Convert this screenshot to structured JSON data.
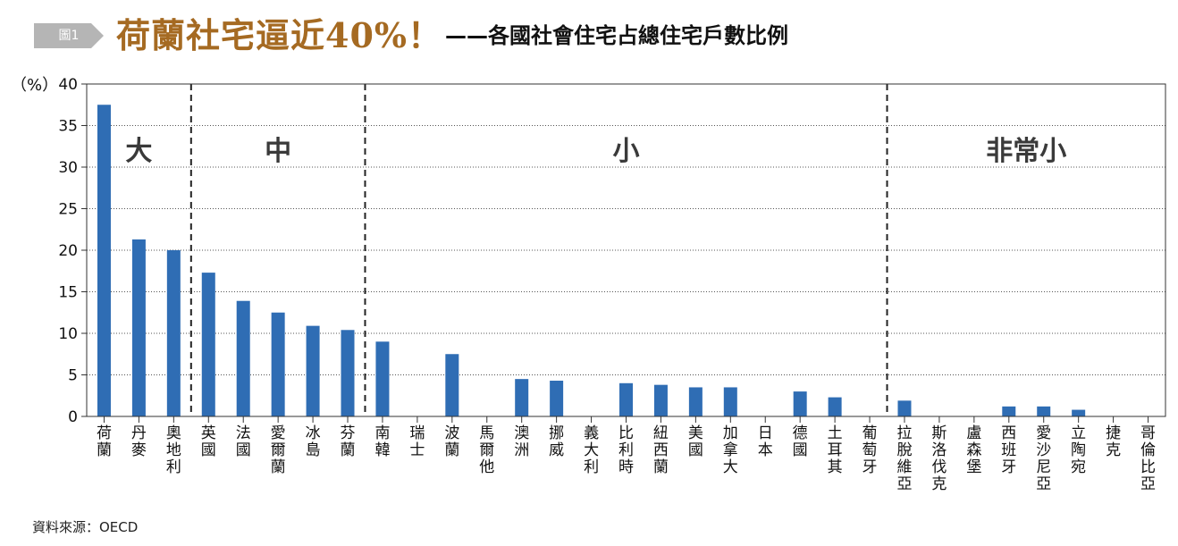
{
  "header": {
    "figure_label": "圖1",
    "title_main": "荷蘭社宅逼近40%！",
    "title_sub": "——各國社會住宅占總住宅戶數比例"
  },
  "source": "資料來源：OECD",
  "colors": {
    "bar": "#2f6db4",
    "title_main": "#a56a22",
    "badge": "#b5b5b5"
  },
  "chart_data": {
    "type": "bar",
    "ylabel": "（%）",
    "ylim": [
      0,
      40
    ],
    "yticks": [
      0,
      5,
      10,
      15,
      20,
      25,
      30,
      35,
      40
    ],
    "grid": "horizontal dotted",
    "categories": [
      "荷蘭",
      "丹麥",
      "奧地利",
      "英國",
      "法國",
      "愛爾蘭",
      "冰島",
      "芬蘭",
      "南韓",
      "瑞士",
      "波蘭",
      "馬爾他",
      "澳洲",
      "挪威",
      "義大利",
      "比利時",
      "紐西蘭",
      "美國",
      "加拿大",
      "日本",
      "德國",
      "土耳其",
      "葡萄牙",
      "拉脫維亞",
      "斯洛伐克",
      "盧森堡",
      "西班牙",
      "愛沙尼亞",
      "立陶宛",
      "捷克",
      "哥倫比亞"
    ],
    "values": [
      37.5,
      21.3,
      20,
      17.3,
      13.9,
      12.5,
      10.9,
      10.4,
      9,
      0,
      7.5,
      0,
      4.5,
      4.3,
      0,
      4,
      3.8,
      3.5,
      3.5,
      0,
      3,
      2.3,
      0,
      1.9,
      0,
      0,
      1.2,
      1.2,
      0.8,
      0,
      0
    ],
    "groups": [
      {
        "label": "大",
        "start": 0,
        "end": 2
      },
      {
        "label": "中",
        "start": 3,
        "end": 7
      },
      {
        "label": "小",
        "start": 8,
        "end": 22
      },
      {
        "label": "非常小",
        "start": 23,
        "end": 30
      }
    ]
  }
}
